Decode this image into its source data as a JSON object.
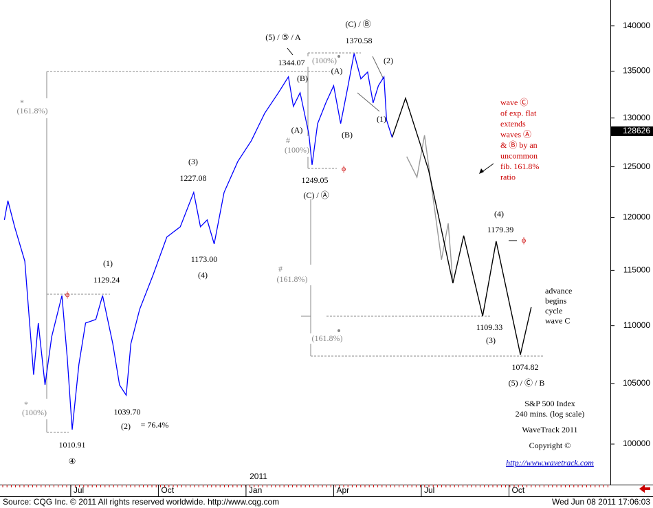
{
  "chart_data": {
    "type": "line",
    "log_scale": true,
    "xlim": [
      3.58,
      24.47
    ],
    "ylim": [
      96790,
      142950
    ],
    "xticks": [
      {
        "value": 6,
        "label": "Jul"
      },
      {
        "value": 9,
        "label": "Oct"
      },
      {
        "value": 12,
        "label": "Jan"
      },
      {
        "value": 15,
        "label": "Apr"
      },
      {
        "value": 18,
        "label": "Jul"
      },
      {
        "value": 21,
        "label": "Oct"
      }
    ],
    "x_year_label": "2011",
    "yticks": [
      140000,
      135000,
      130000,
      125000,
      120000,
      115000,
      110000,
      105000,
      100000
    ],
    "last_value": 128626,
    "series": [
      {
        "color": "#0000ff",
        "x": [
          3.73,
          3.85,
          4.08,
          4.43,
          4.73,
          4.89,
          5.12,
          5.35,
          5.7,
          5.88,
          6.05,
          6.28,
          6.51,
          6.86,
          7.09,
          7.44,
          7.67,
          7.9,
          8.06,
          8.36,
          8.82,
          9.29,
          9.75,
          10.21,
          10.44,
          10.67,
          10.91,
          11.25,
          11.72,
          12.18,
          12.64,
          13.11,
          13.45,
          13.62,
          13.85,
          14.15,
          14.26,
          14.45,
          14.73,
          15.0,
          15.24,
          15.47,
          15.7,
          15.93,
          16.16,
          16.35,
          16.53,
          16.72,
          16.81,
          17.0
        ],
        "values": [
          119770,
          121640,
          119110,
          115860,
          105750,
          110230,
          104870,
          109020,
          112700,
          107220,
          101170,
          106630,
          110230,
          110540,
          112700,
          108410,
          104870,
          104010,
          108410,
          111460,
          114580,
          118120,
          119110,
          122450,
          119110,
          119770,
          117470,
          122450,
          125540,
          127640,
          130500,
          132680,
          134380,
          131220,
          132680,
          128350,
          125190,
          129420,
          131590,
          133420,
          129420,
          133050,
          136930,
          134160,
          134900,
          131590,
          133420,
          134380,
          129780,
          127990
        ]
      },
      {
        "color": "#000000",
        "x": [
          17.0,
          17.46,
          18.25,
          19.08,
          19.45,
          20.1,
          20.56,
          21.39,
          21.76
        ],
        "values": [
          127990,
          132090,
          124640,
          113820,
          118260,
          110840,
          117730,
          107460,
          111640
        ]
      },
      {
        "color": "#999999",
        "x": [
          17.5,
          17.85,
          18.11,
          18.69,
          18.92,
          19.08
        ],
        "values": [
          126030,
          123950,
          128210,
          115990,
          119440,
          113820
        ]
      }
    ],
    "annotations": [
      {
        "text": "(5) / ⑤ / A",
        "color": "#000000"
      },
      {
        "text": "1344.07",
        "color": "#000000"
      },
      {
        "text": "(B)",
        "color": "#000000"
      },
      {
        "text": "(C) / Ⓑ",
        "color": "#000000"
      },
      {
        "text": "1370.58",
        "color": "#000000"
      },
      {
        "text": "(100%)",
        "color": "#888888"
      },
      {
        "text": "(A)",
        "color": "#000000"
      },
      {
        "text": "(2)",
        "color": "#000000"
      },
      {
        "text": "(A)",
        "color": "#000000"
      },
      {
        "text": "#",
        "color": "#888888"
      },
      {
        "text": "(100%)",
        "color": "#888888"
      },
      {
        "text": "(B)",
        "color": "#000000"
      },
      {
        "text": "(1)",
        "color": "#000000"
      },
      {
        "text": "1249.05",
        "color": "#000000"
      },
      {
        "text": "(C) / Ⓐ",
        "color": "#000000"
      },
      {
        "text": "ϕ",
        "color": "#cc0000"
      },
      {
        "text": "(3)",
        "color": "#000000"
      },
      {
        "text": "1227.08",
        "color": "#000000"
      },
      {
        "text": "1173.00",
        "color": "#000000"
      },
      {
        "text": "(4)",
        "color": "#000000"
      },
      {
        "text": "(1)",
        "color": "#000000"
      },
      {
        "text": "1129.24",
        "color": "#000000"
      },
      {
        "text": "ϕ",
        "color": "#cc0000"
      },
      {
        "text": "*",
        "color": "#888888"
      },
      {
        "text": "(161.8%)",
        "color": "#888888"
      },
      {
        "text": "*",
        "color": "#888888"
      },
      {
        "text": "(100%)",
        "color": "#888888"
      },
      {
        "text": "1039.70",
        "color": "#000000"
      },
      {
        "text": "(2)",
        "color": "#000000"
      },
      {
        "text": "= 76.4%",
        "color": "#000000"
      },
      {
        "text": "1010.91",
        "color": "#000000"
      },
      {
        "text": "④",
        "color": "#000000"
      },
      {
        "text": "#",
        "color": "#888888"
      },
      {
        "text": "(161.8%)",
        "color": "#888888"
      },
      {
        "text": "(161.8%)",
        "color": "#888888"
      },
      {
        "text": "(4)",
        "color": "#000000"
      },
      {
        "text": "1179.39",
        "color": "#000000"
      },
      {
        "text": "ϕ",
        "color": "#cc0000"
      },
      {
        "text": "1109.33",
        "color": "#000000"
      },
      {
        "text": "(3)",
        "color": "#000000"
      },
      {
        "text": "1074.82",
        "color": "#000000"
      },
      {
        "text": "(5) / Ⓒ / B",
        "color": "#000000"
      }
    ],
    "red_note": [
      "wave Ⓒ",
      "of exp. flat",
      "extends",
      "waves Ⓐ",
      "& Ⓑ by an",
      "uncommon",
      "fib. 161.8%",
      "ratio"
    ],
    "advance_note": [
      "advance",
      "begins",
      "cycle",
      "wave C"
    ],
    "info": [
      "S&P 500 Index",
      "240 mins. (log scale)",
      "WaveTrack 2011",
      "Copyright ©"
    ],
    "link": "http://www.wavetrack.com",
    "footer": {
      "source": "Source: CQG Inc. © 2011 All rights reserved worldwide.  http://www.cqg.com",
      "timestamp": "Wed Jun 08 2011 17:06:03"
    }
  }
}
